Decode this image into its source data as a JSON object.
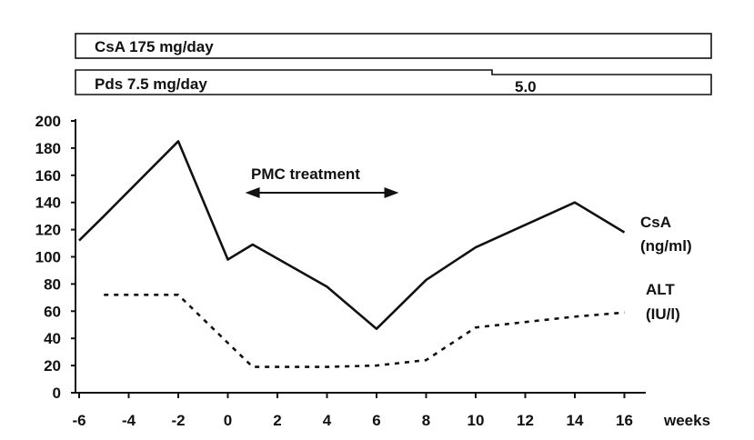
{
  "dosage_bars": [
    {
      "label": "CsA 175 mg/day",
      "second_label": ""
    },
    {
      "label": "Pds 7.5 mg/day",
      "second_label": "5.0"
    }
  ],
  "annotation": {
    "text": "PMC treatment",
    "x_from": 0.7,
    "x_to": 6.9
  },
  "chart_data": {
    "type": "line",
    "xlabel": "weeks",
    "ylabel": "",
    "xlim": [
      -6,
      17
    ],
    "ylim": [
      0,
      200
    ],
    "x_ticks": [
      -6,
      -4,
      -2,
      0,
      2,
      4,
      6,
      8,
      10,
      12,
      14,
      16
    ],
    "y_ticks": [
      0,
      20,
      40,
      60,
      80,
      100,
      120,
      140,
      160,
      180,
      200
    ],
    "grid": false,
    "series": [
      {
        "name": "CsA\n(ng/ml)",
        "name_lines": [
          "CsA",
          "(ng/ml)"
        ],
        "style": "solid",
        "x": [
          -6,
          -5,
          -2,
          0,
          1,
          4,
          6,
          8,
          10,
          14,
          16
        ],
        "y": [
          112,
          130,
          185,
          98,
          109,
          78,
          47,
          83,
          107,
          140,
          118
        ]
      },
      {
        "name": "ALT\n(IU/l)",
        "name_lines": [
          "ALT",
          "(IU/l)"
        ],
        "style": "dashed",
        "x": [
          -5,
          -2,
          1,
          4,
          6,
          8,
          10,
          14,
          16
        ],
        "y": [
          72,
          72,
          19,
          19,
          20,
          24,
          48,
          56,
          59
        ]
      }
    ]
  }
}
